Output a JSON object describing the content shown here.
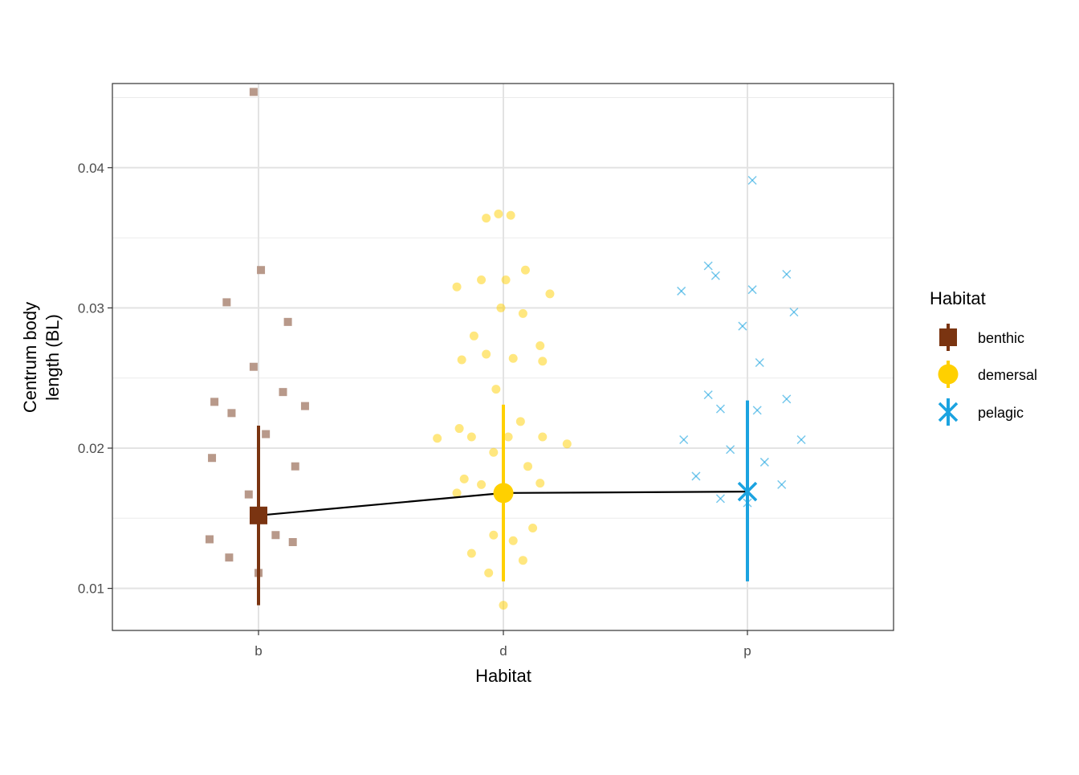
{
  "chart_data": {
    "type": "scatter",
    "xlabel": "Habitat",
    "ylabel": [
      "Centrum body",
      "length (BL)"
    ],
    "categories": [
      "b",
      "d",
      "p"
    ],
    "ylim": [
      0.007,
      0.046
    ],
    "yticks": [
      0.01,
      0.02,
      0.03,
      0.04
    ],
    "ytick_labels": [
      "0.01",
      "0.02",
      "0.03",
      "0.04"
    ],
    "grid": true,
    "legend": {
      "title": "Habitat",
      "placement": "right",
      "entries": [
        {
          "label": "benthic",
          "color": "#7a3411",
          "shape": "square"
        },
        {
          "label": "demersal",
          "color": "#ffd000",
          "shape": "circle"
        },
        {
          "label": "pelagic",
          "color": "#1ba3e0",
          "shape": "cross"
        }
      ]
    },
    "series": [
      {
        "category": "b",
        "color": "#7a3411",
        "shape": "square",
        "mean": 0.0152,
        "lower": 0.0088,
        "upper": 0.0216,
        "points": [
          [
            -0.02,
            0.0454
          ],
          [
            0.01,
            0.0327
          ],
          [
            -0.13,
            0.0304
          ],
          [
            0.12,
            0.029
          ],
          [
            -0.02,
            0.0258
          ],
          [
            0.1,
            0.024
          ],
          [
            -0.18,
            0.0233
          ],
          [
            0.19,
            0.023
          ],
          [
            -0.11,
            0.0225
          ],
          [
            0.03,
            0.021
          ],
          [
            -0.19,
            0.0193
          ],
          [
            0.15,
            0.0187
          ],
          [
            -0.04,
            0.0167
          ],
          [
            0.07,
            0.0138
          ],
          [
            -0.2,
            0.0135
          ],
          [
            0.14,
            0.0133
          ],
          [
            -0.12,
            0.0122
          ],
          [
            0.0,
            0.0111
          ]
        ]
      },
      {
        "category": "d",
        "color": "#ffd000",
        "shape": "circle",
        "mean": 0.0168,
        "lower": 0.0105,
        "upper": 0.0231,
        "points": [
          [
            -0.02,
            0.0367
          ],
          [
            0.03,
            0.0366
          ],
          [
            -0.07,
            0.0364
          ],
          [
            0.09,
            0.0327
          ],
          [
            -0.09,
            0.032
          ],
          [
            0.01,
            0.032
          ],
          [
            -0.19,
            0.0315
          ],
          [
            0.19,
            0.031
          ],
          [
            -0.01,
            0.03
          ],
          [
            0.08,
            0.0296
          ],
          [
            -0.12,
            0.028
          ],
          [
            0.15,
            0.0273
          ],
          [
            -0.07,
            0.0267
          ],
          [
            -0.17,
            0.0263
          ],
          [
            0.04,
            0.0264
          ],
          [
            0.16,
            0.0262
          ],
          [
            -0.03,
            0.0242
          ],
          [
            0.07,
            0.0219
          ],
          [
            -0.18,
            0.0214
          ],
          [
            -0.27,
            0.0207
          ],
          [
            -0.13,
            0.0208
          ],
          [
            0.02,
            0.0208
          ],
          [
            0.16,
            0.0208
          ],
          [
            0.26,
            0.0203
          ],
          [
            -0.04,
            0.0197
          ],
          [
            0.1,
            0.0187
          ],
          [
            -0.16,
            0.0178
          ],
          [
            -0.09,
            0.0174
          ],
          [
            0.15,
            0.0175
          ],
          [
            -0.19,
            0.0168
          ],
          [
            0.12,
            0.0143
          ],
          [
            -0.04,
            0.0138
          ],
          [
            0.04,
            0.0134
          ],
          [
            -0.13,
            0.0125
          ],
          [
            0.08,
            0.012
          ],
          [
            -0.06,
            0.0111
          ],
          [
            0.0,
            0.0088
          ]
        ]
      },
      {
        "category": "p",
        "color": "#1ba3e0",
        "shape": "cross",
        "mean": 0.0169,
        "lower": 0.0105,
        "upper": 0.0234,
        "points": [
          [
            0.02,
            0.0391
          ],
          [
            -0.16,
            0.033
          ],
          [
            -0.13,
            0.0323
          ],
          [
            0.16,
            0.0324
          ],
          [
            -0.27,
            0.0312
          ],
          [
            0.02,
            0.0313
          ],
          [
            0.19,
            0.0297
          ],
          [
            -0.02,
            0.0287
          ],
          [
            0.05,
            0.0261
          ],
          [
            -0.16,
            0.0238
          ],
          [
            0.16,
            0.0235
          ],
          [
            -0.11,
            0.0228
          ],
          [
            0.04,
            0.0227
          ],
          [
            -0.26,
            0.0206
          ],
          [
            0.22,
            0.0206
          ],
          [
            -0.07,
            0.0199
          ],
          [
            0.07,
            0.019
          ],
          [
            -0.21,
            0.018
          ],
          [
            0.14,
            0.0174
          ],
          [
            -0.11,
            0.0164
          ],
          [
            0.0,
            0.0161
          ]
        ]
      }
    ]
  }
}
